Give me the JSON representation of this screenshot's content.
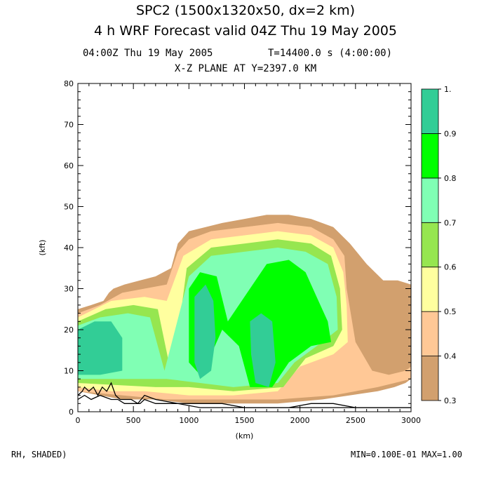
{
  "chart_data": {
    "type": "heatmap",
    "title": "SPC2 (1500x1320x50, dx=2 km)",
    "subtitle": "4 h WRF Forecast valid 04Z Thu 19 May 2005",
    "time_label": "04:00Z Thu 19 May 2005",
    "t_label": "T=14400.0 s (4:00:00)",
    "plane_label": "X-Z PLANE AT Y=2397.0 KM",
    "xlabel": "(km)",
    "ylabel": "(kft)",
    "xlim": [
      0,
      3000
    ],
    "ylim": [
      0,
      80
    ],
    "xticks": [
      0,
      500,
      1000,
      1500,
      2000,
      2500,
      3000
    ],
    "yticks": [
      0,
      10,
      20,
      30,
      40,
      50,
      60,
      70,
      80
    ],
    "colorbar": {
      "levels": [
        0.3,
        0.4,
        0.5,
        0.6,
        0.7,
        0.8,
        0.9,
        1.0
      ],
      "labels": [
        "0.3",
        "0.4",
        "0.5",
        "0.6",
        "0.7",
        "0.8",
        "0.9",
        "1."
      ],
      "colors": [
        "#d2a06e",
        "#ffc896",
        "#ffff9f",
        "#96e650",
        "#80ffb4",
        "#00ff00",
        "#32cd96"
      ]
    },
    "field_label": "RH, SHADED)",
    "minmax_label": "MIN=0.100E-01 MAX=1.00",
    "cloud_regions": [
      {
        "level": 0.3,
        "points": [
          [
            0,
            5
          ],
          [
            0,
            25
          ],
          [
            120,
            26
          ],
          [
            230,
            27
          ],
          [
            280,
            29
          ],
          [
            320,
            30
          ],
          [
            420,
            31
          ],
          [
            560,
            32
          ],
          [
            700,
            33
          ],
          [
            840,
            35
          ],
          [
            900,
            41
          ],
          [
            1000,
            44
          ],
          [
            1150,
            45
          ],
          [
            1300,
            46
          ],
          [
            1500,
            47
          ],
          [
            1700,
            48
          ],
          [
            1900,
            48
          ],
          [
            2100,
            47
          ],
          [
            2300,
            45
          ],
          [
            2450,
            41
          ],
          [
            2600,
            36
          ],
          [
            2750,
            32
          ],
          [
            2880,
            32
          ],
          [
            3000,
            31
          ],
          [
            3000,
            8
          ],
          [
            2950,
            7
          ],
          [
            2850,
            6
          ],
          [
            2700,
            5
          ],
          [
            2450,
            4
          ],
          [
            2200,
            3
          ],
          [
            1800,
            2
          ],
          [
            1400,
            2
          ],
          [
            1000,
            2
          ],
          [
            700,
            3
          ],
          [
            400,
            3
          ],
          [
            200,
            4
          ],
          [
            0,
            5
          ]
        ]
      },
      {
        "level": 0.4,
        "points": [
          [
            0,
            5
          ],
          [
            0,
            24
          ],
          [
            200,
            26
          ],
          [
            400,
            29
          ],
          [
            600,
            30
          ],
          [
            800,
            31
          ],
          [
            900,
            39
          ],
          [
            1000,
            42
          ],
          [
            1200,
            44
          ],
          [
            1500,
            45
          ],
          [
            1800,
            46
          ],
          [
            2100,
            45
          ],
          [
            2300,
            42
          ],
          [
            2400,
            38
          ],
          [
            2420,
            30
          ],
          [
            2500,
            17
          ],
          [
            2650,
            10
          ],
          [
            2800,
            9
          ],
          [
            2950,
            10
          ],
          [
            3000,
            11
          ],
          [
            3000,
            8
          ],
          [
            2700,
            6
          ],
          [
            2300,
            4
          ],
          [
            1800,
            3
          ],
          [
            1200,
            3
          ],
          [
            800,
            3
          ],
          [
            400,
            4
          ],
          [
            0,
            5
          ]
        ]
      },
      {
        "level": 0.5,
        "points": [
          [
            0,
            6
          ],
          [
            0,
            23
          ],
          [
            300,
            27
          ],
          [
            600,
            28
          ],
          [
            800,
            27
          ],
          [
            950,
            38
          ],
          [
            1200,
            42
          ],
          [
            1500,
            43
          ],
          [
            1800,
            44
          ],
          [
            2100,
            43
          ],
          [
            2300,
            40
          ],
          [
            2390,
            34
          ],
          [
            2420,
            26
          ],
          [
            2430,
            17
          ],
          [
            2300,
            14
          ],
          [
            2000,
            11
          ],
          [
            1800,
            5
          ],
          [
            1400,
            4
          ],
          [
            1000,
            4
          ],
          [
            600,
            5
          ],
          [
            300,
            5
          ],
          [
            0,
            6
          ]
        ]
      },
      {
        "level": 0.6,
        "points": [
          [
            0,
            7
          ],
          [
            0,
            22
          ],
          [
            250,
            25
          ],
          [
            500,
            26
          ],
          [
            720,
            25
          ],
          [
            850,
            8
          ],
          [
            980,
            35
          ],
          [
            1200,
            40
          ],
          [
            1500,
            41
          ],
          [
            1800,
            42
          ],
          [
            2100,
            41
          ],
          [
            2280,
            38
          ],
          [
            2360,
            30
          ],
          [
            2380,
            20
          ],
          [
            2300,
            16
          ],
          [
            2050,
            13
          ],
          [
            1850,
            6
          ],
          [
            1400,
            5
          ],
          [
            1000,
            6
          ],
          [
            700,
            6
          ],
          [
            0,
            7
          ]
        ]
      },
      {
        "level": 0.7,
        "points": [
          [
            0,
            8
          ],
          [
            0,
            21
          ],
          [
            200,
            23
          ],
          [
            450,
            24
          ],
          [
            650,
            23
          ],
          [
            780,
            10
          ],
          [
            1000,
            33
          ],
          [
            1200,
            38
          ],
          [
            1500,
            39
          ],
          [
            1800,
            40
          ],
          [
            2050,
            39
          ],
          [
            2250,
            36
          ],
          [
            2330,
            28
          ],
          [
            2340,
            20
          ],
          [
            2200,
            17
          ],
          [
            1950,
            12
          ],
          [
            1800,
            7
          ],
          [
            1400,
            6
          ],
          [
            1100,
            7
          ],
          [
            800,
            8
          ],
          [
            0,
            8
          ]
        ]
      },
      {
        "level": 0.8,
        "points": [
          [
            1000,
            30
          ],
          [
            1100,
            34
          ],
          [
            1250,
            33
          ],
          [
            1350,
            22
          ],
          [
            1550,
            30
          ],
          [
            1700,
            36
          ],
          [
            1900,
            37
          ],
          [
            2050,
            34
          ],
          [
            2150,
            28
          ],
          [
            2250,
            22
          ],
          [
            2280,
            17
          ],
          [
            2100,
            16
          ],
          [
            1900,
            12
          ],
          [
            1750,
            6
          ],
          [
            1550,
            6
          ],
          [
            1450,
            16
          ],
          [
            1300,
            20
          ],
          [
            1200,
            14
          ],
          [
            1100,
            9
          ],
          [
            1000,
            12
          ]
        ]
      },
      {
        "level": 0.9,
        "points": [
          [
            0,
            9
          ],
          [
            0,
            20
          ],
          [
            150,
            22
          ],
          [
            300,
            22
          ],
          [
            400,
            18
          ],
          [
            400,
            10
          ],
          [
            200,
            9
          ]
        ]
      },
      {
        "level": 0.9,
        "points": [
          [
            1050,
            28
          ],
          [
            1150,
            31
          ],
          [
            1220,
            27
          ],
          [
            1240,
            18
          ],
          [
            1200,
            10
          ],
          [
            1100,
            8
          ],
          [
            1050,
            12
          ]
        ]
      },
      {
        "level": 0.9,
        "points": [
          [
            1550,
            22
          ],
          [
            1650,
            24
          ],
          [
            1750,
            22
          ],
          [
            1780,
            12
          ],
          [
            1720,
            6
          ],
          [
            1600,
            7
          ],
          [
            1560,
            14
          ]
        ]
      }
    ],
    "terrain_lines": [
      {
        "x": [
          0,
          40,
          60,
          100,
          140,
          180,
          220,
          260,
          300,
          340,
          380,
          420,
          480,
          540,
          600,
          700,
          900,
          1100,
          1300,
          1500,
          1700,
          1900,
          2100,
          2300,
          2500,
          2700,
          2900,
          3000
        ],
        "y": [
          4,
          5,
          6,
          5,
          6,
          4,
          6,
          5,
          7,
          4,
          3,
          3,
          3,
          2,
          4,
          3,
          2,
          2,
          2,
          1,
          1,
          1,
          2,
          2,
          1,
          1,
          1,
          1
        ]
      },
      {
        "x": [
          0,
          60,
          120,
          200,
          300,
          360,
          420,
          500,
          560,
          600,
          700,
          900,
          1100,
          1300,
          1500,
          1700,
          1900,
          2100,
          2300,
          2500,
          2700,
          2900,
          3000
        ],
        "y": [
          3,
          4,
          3,
          4,
          3,
          3,
          2,
          2,
          2,
          3,
          2,
          2,
          1,
          1,
          1,
          1,
          1,
          1,
          1,
          1,
          1,
          1,
          1
        ]
      }
    ]
  }
}
